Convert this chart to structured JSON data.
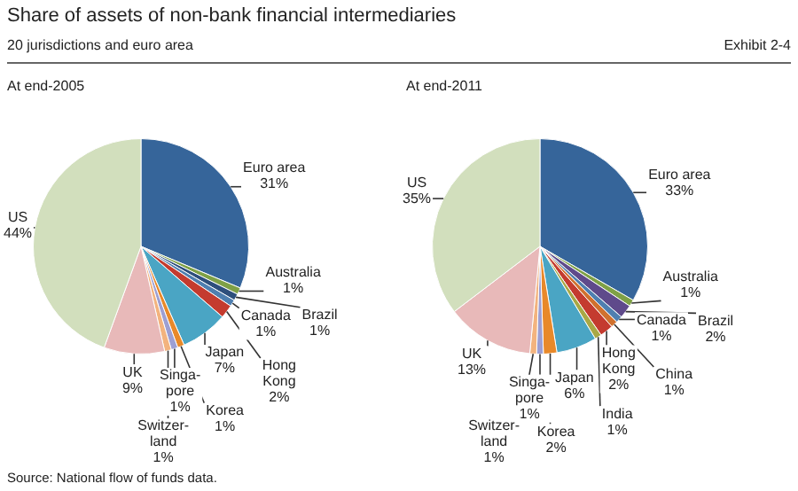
{
  "chart_data": [
    {
      "type": "other",
      "title": "Share of assets of non-bank financial intermediaries",
      "subtitle": "20 jurisdictions and euro area",
      "annotations": [
        "Exhibit 2-4",
        "Source: National flow of funds data."
      ]
    },
    {
      "type": "pie",
      "title": "At end-2005",
      "categories": [
        "Euro area",
        "Australia",
        "Brazil",
        "Canada",
        "Hong\nKong",
        "Japan",
        "Korea",
        "Singa-\npore",
        "Switzer-\nland",
        "UK",
        "US"
      ],
      "values": [
        31,
        1,
        1,
        1,
        2,
        7,
        1,
        1,
        1,
        9,
        44
      ],
      "value_labels": [
        "31%",
        "1%",
        "1%",
        "1%",
        "2%",
        "7%",
        "1%",
        "1%",
        "1%",
        "9%",
        "44%"
      ],
      "colors": [
        "#36659a",
        "#7fa146",
        "#2e4f7c",
        "#4f7fb0",
        "#c43b2f",
        "#4aa5c4",
        "#e8892a",
        "#9d9fd2",
        "#f3b37e",
        "#e8b9b9",
        "#d2dfbd"
      ]
    },
    {
      "type": "pie",
      "title": "At end-2011",
      "categories": [
        "Euro area",
        "Australia",
        "Brazil",
        "Canada",
        "China",
        "Hong\nKong",
        "India",
        "Japan",
        "Korea",
        "Singa-\npore",
        "Switzer-\nland",
        "UK",
        "US"
      ],
      "values": [
        33,
        1,
        2,
        1,
        1,
        2,
        1,
        6,
        2,
        1,
        1,
        13,
        35
      ],
      "value_labels": [
        "33%",
        "1%",
        "2%",
        "1%",
        "1%",
        "2%",
        "1%",
        "6%",
        "2%",
        "1%",
        "1%",
        "13%",
        "35%"
      ],
      "colors": [
        "#36659a",
        "#7fa146",
        "#5f4a8b",
        "#4f7fb0",
        "#d0712e",
        "#c43b2f",
        "#a9a845",
        "#4aa5c4",
        "#e8892a",
        "#9d9fd2",
        "#f3b37e",
        "#e8b9b9",
        "#d2dfbd"
      ]
    }
  ]
}
